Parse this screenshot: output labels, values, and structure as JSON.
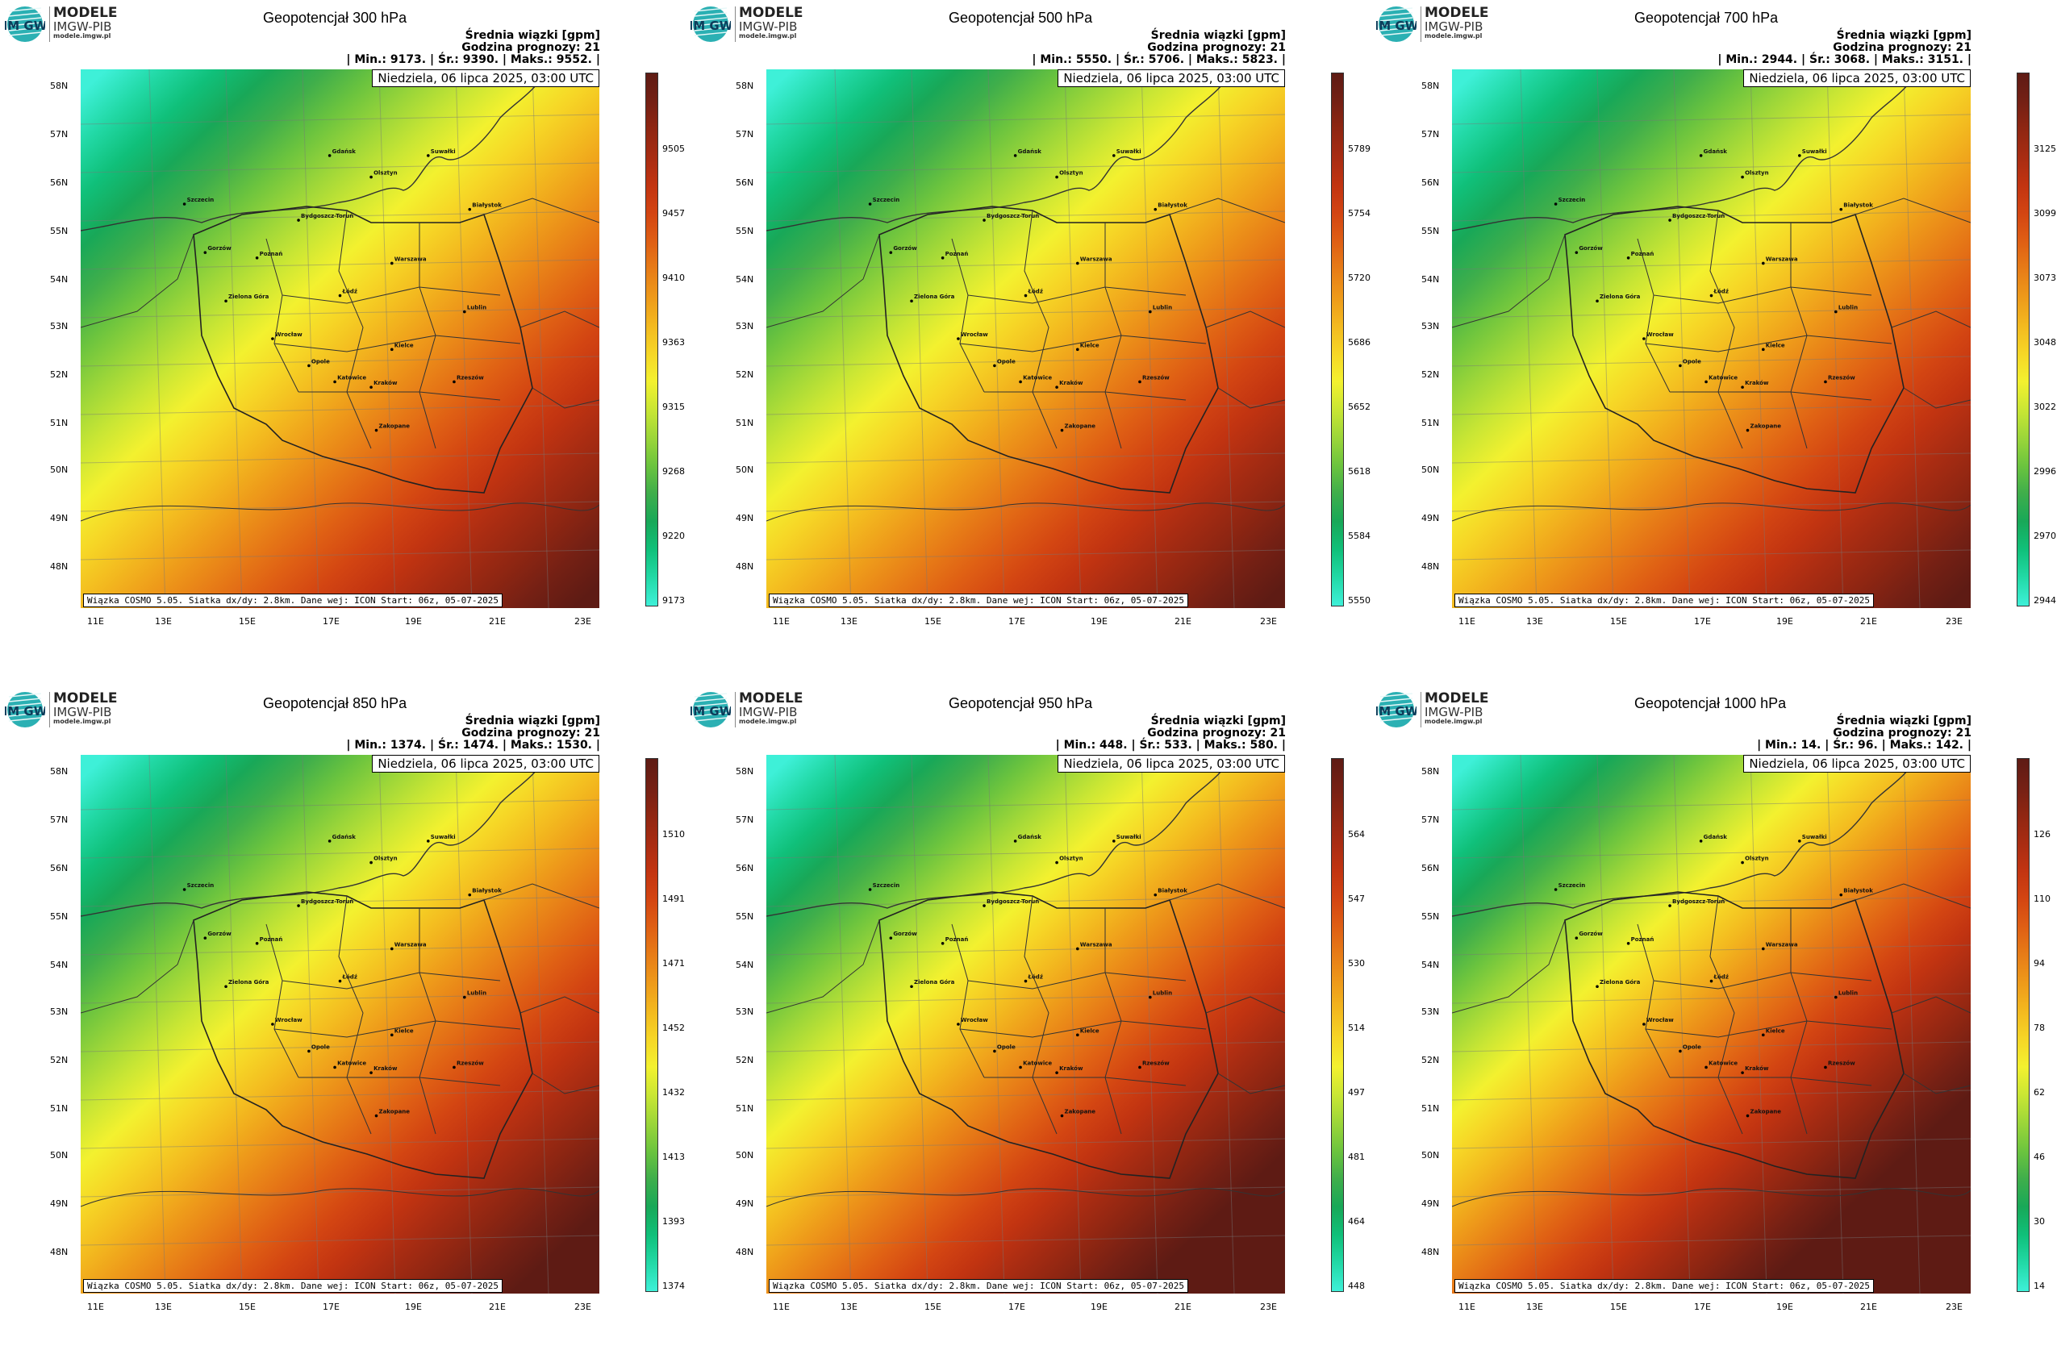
{
  "logo": {
    "title": "MODELE",
    "subtitle": "IMGW-PIB",
    "url": "modele.imgw.pl",
    "mark": "IM GW"
  },
  "common": {
    "header_line1": "Średnia wiązki [gpm]",
    "header_line2": "Godzina prognozy: 21",
    "date": "Niedziela, 06 lipca 2025, 03:00 UTC",
    "footer": "Wiązka COSMO 5.05. Siatka dx/dy: 2.8km. Dane wej: ICON Start: 06z, 05-07-2025",
    "lat_labels": [
      "58N",
      "57N",
      "56N",
      "55N",
      "54N",
      "53N",
      "52N",
      "51N",
      "50N",
      "49N",
      "48N"
    ],
    "lon_labels": [
      "11E",
      "13E",
      "15E",
      "17E",
      "19E",
      "21E",
      "23E"
    ]
  },
  "palette": [
    "#3ef0d8",
    "#22d9a6",
    "#10c07a",
    "#18a858",
    "#3fae4b",
    "#6cc43e",
    "#9cd639",
    "#c9e634",
    "#f3f12f",
    "#f6d626",
    "#f3b91f",
    "#ee9a1a",
    "#e77c17",
    "#df5f14",
    "#d34512",
    "#c23411",
    "#a82c12",
    "#8f2612",
    "#742014",
    "#5e1b14"
  ],
  "panels": [
    {
      "title": "Geopotencjał 300 hPa",
      "stats": "| Min.:    9173. | Śr.:    9390. | Maks.:    9552. |",
      "ticks": [
        "9173",
        "9220",
        "9268",
        "9315",
        "9363",
        "9410",
        "9457",
        "9505"
      ]
    },
    {
      "title": "Geopotencjał 500 hPa",
      "stats": "| Min.:    5550. | Śr.:    5706. | Maks.:    5823. |",
      "ticks": [
        "5550",
        "5584",
        "5618",
        "5652",
        "5686",
        "5720",
        "5754",
        "5789"
      ]
    },
    {
      "title": "Geopotencjał 700 hPa",
      "stats": "| Min.:    2944. | Śr.:    3068. | Maks.:    3151. |",
      "ticks": [
        "2944",
        "2970",
        "2996",
        "3022",
        "3048",
        "3073",
        "3099",
        "3125"
      ]
    },
    {
      "title": "Geopotencjał 850 hPa",
      "stats": "| Min.:    1374. | Śr.:    1474. | Maks.:    1530. |",
      "ticks": [
        "1374",
        "1393",
        "1413",
        "1432",
        "1452",
        "1471",
        "1491",
        "1510"
      ]
    },
    {
      "title": "Geopotencjał 950 hPa",
      "stats": "| Min.:    448. | Śr.:    533. | Maks.:    580. |",
      "ticks": [
        "448",
        "464",
        "481",
        "497",
        "514",
        "530",
        "547",
        "564"
      ]
    },
    {
      "title": "Geopotencjał 1000 hPa",
      "stats": "| Min.:    14. | Śr.:    96. | Maks.:    142. |",
      "ticks": [
        "14",
        "30",
        "46",
        "62",
        "78",
        "94",
        "110",
        "126"
      ]
    }
  ],
  "cities": [
    "Gdańsk",
    "Suwałki",
    "Olsztyn",
    "Szczecin",
    "Białystok",
    "Bydgoszcz-Toruń",
    "Gorzów",
    "Poznań",
    "Warszawa",
    "Łódź",
    "Zielona Góra",
    "Lublin",
    "Wrocław",
    "Kielce",
    "Opole",
    "Katowice",
    "Kraków",
    "Rzeszów",
    "Zakopane"
  ]
}
